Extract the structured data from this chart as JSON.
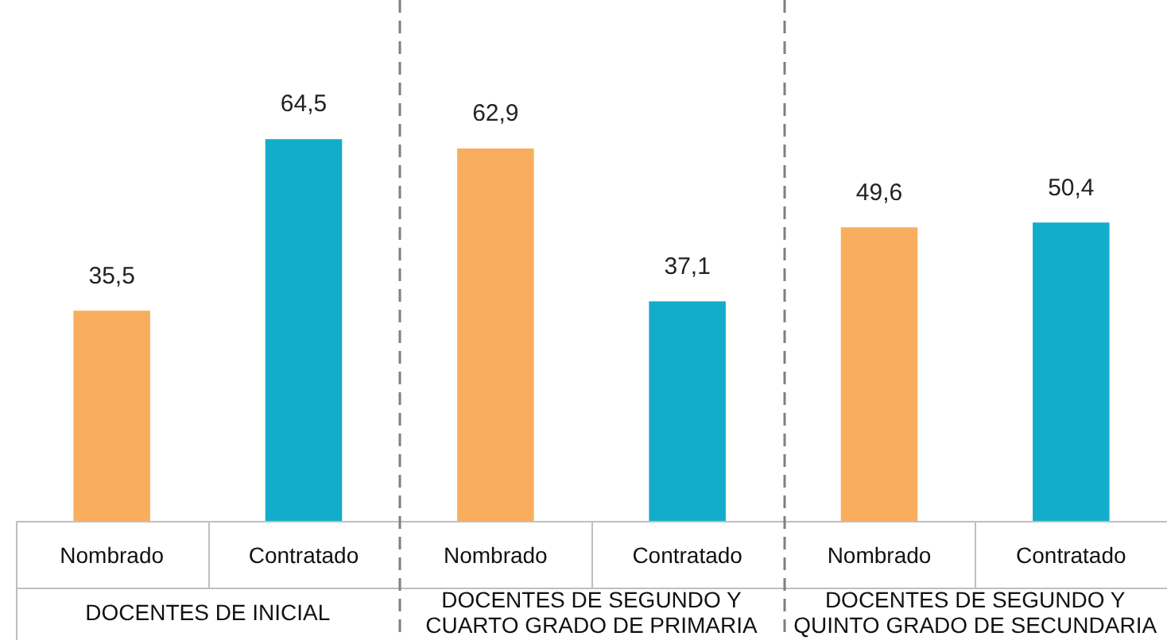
{
  "chart_data": {
    "type": "bar",
    "categories": [
      "Nombrado",
      "Contratado",
      "Nombrado",
      "Contratado",
      "Nombrado",
      "Contratado"
    ],
    "values": [
      35.5,
      64.5,
      62.9,
      37.1,
      49.6,
      50.4
    ],
    "colors": [
      "#f9ae5f",
      "#12adc9",
      "#f9ae5f",
      "#12adc9",
      "#f9ae5f",
      "#12adc9"
    ],
    "value_labels": [
      "35,5",
      "64,5",
      "62,9",
      "37,1",
      "49,6",
      "50,4"
    ],
    "ylim": [
      0,
      88
    ],
    "tick_labels": "x",
    "grid": false,
    "legend": false,
    "annotations": [
      "DOCENTES DE INICIAL",
      "DOCENTES DE SEGUNDO Y CUARTO GRADO DE PRIMARIA",
      "DOCENTES DE SEGUNDO Y QUINTO GRADO DE SECUNDARIA"
    ]
  }
}
